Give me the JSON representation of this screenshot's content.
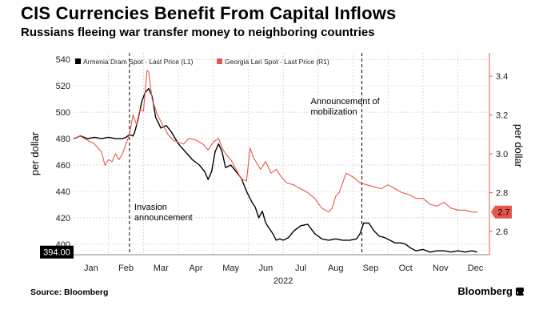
{
  "header": {
    "title": "CIS Currencies Benefit From Capital Inflows",
    "subtitle": "Russians fleeing war transfer money to neighboring countries"
  },
  "footer": {
    "source": "Source: Bloomberg",
    "brand": "Bloomberg"
  },
  "colors": {
    "armenia": "#000000",
    "georgia": "#e8554e",
    "grid": "#cccccc"
  },
  "chart_data": {
    "type": "line",
    "title": "CIS Currencies Benefit From Capital Inflows",
    "subtitle": "Russians fleeing war transfer money to neighboring countries",
    "xlabel": "2022",
    "ylabel_left": "per dollar",
    "ylabel_right": "per dollar",
    "x_ticks": [
      "Jan",
      "Feb",
      "Mar",
      "Apr",
      "May",
      "Jun",
      "Jul",
      "Aug",
      "Sep",
      "Oct",
      "Nov",
      "Dec"
    ],
    "x_range": [
      0,
      11.9
    ],
    "ylim_left": [
      392,
      545
    ],
    "yticks_left": [
      400,
      420,
      440,
      460,
      480,
      500,
      520,
      540
    ],
    "ylim_right": [
      2.48,
      3.52
    ],
    "yticks_right": [
      2.6,
      2.8,
      3.0,
      3.2,
      3.4
    ],
    "legend": [
      "Armenia Dram Spot - Last Price (L1)",
      "Georgia Lari Spot - Last Price (R1)"
    ],
    "legend_position": "top-left",
    "last_value_left": "394.00",
    "last_value_right": "2.7",
    "annotations": [
      {
        "x": 1.6,
        "text_lines": [
          "Invasion",
          "announcement"
        ]
      },
      {
        "x": 8.25,
        "text_lines": [
          "Announcement of",
          "mobilization"
        ]
      }
    ],
    "series": [
      {
        "name": "Armenia Dram Spot - Last Price (L1)",
        "axis": "left",
        "x": [
          0,
          0.2,
          0.4,
          0.6,
          0.8,
          1.0,
          1.2,
          1.4,
          1.5,
          1.6,
          1.7,
          1.75,
          1.85,
          1.95,
          2.05,
          2.15,
          2.25,
          2.35,
          2.5,
          2.65,
          2.8,
          3.0,
          3.2,
          3.4,
          3.6,
          3.75,
          3.85,
          3.95,
          4.05,
          4.15,
          4.25,
          4.35,
          4.5,
          4.65,
          4.8,
          4.95,
          5.1,
          5.2,
          5.3,
          5.4,
          5.5,
          5.6,
          5.7,
          5.8,
          5.9,
          6.0,
          6.15,
          6.3,
          6.5,
          6.7,
          6.9,
          7.1,
          7.3,
          7.5,
          7.7,
          7.9,
          8.1,
          8.2,
          8.3,
          8.45,
          8.6,
          8.75,
          8.9,
          9.05,
          9.2,
          9.35,
          9.5,
          9.65,
          9.8,
          10.0,
          10.2,
          10.4,
          10.6,
          10.8,
          11.0,
          11.2,
          11.4,
          11.55
        ],
        "values": [
          480,
          482,
          480,
          481,
          480,
          481,
          480,
          480,
          481,
          483,
          482,
          485,
          495,
          508,
          515,
          518,
          512,
          496,
          488,
          490,
          485,
          476,
          470,
          464,
          460,
          455,
          449,
          455,
          470,
          476,
          470,
          458,
          460,
          455,
          450,
          440,
          432,
          428,
          420,
          425,
          416,
          412,
          408,
          403,
          404,
          403,
          405,
          410,
          414,
          415,
          408,
          404,
          403,
          404,
          403,
          403,
          404,
          408,
          416,
          416,
          410,
          406,
          405,
          403,
          401,
          401,
          400,
          397,
          395,
          396,
          394,
          395,
          395,
          394,
          395,
          394,
          395,
          394
        ]
      },
      {
        "name": "Georgia Lari Spot - Last Price (R1)",
        "axis": "right",
        "x": [
          0,
          0.2,
          0.4,
          0.6,
          0.8,
          0.9,
          1.0,
          1.1,
          1.2,
          1.3,
          1.4,
          1.5,
          1.6,
          1.7,
          1.8,
          1.9,
          2.0,
          2.1,
          2.15,
          2.25,
          2.4,
          2.55,
          2.7,
          2.85,
          3.0,
          3.15,
          3.3,
          3.5,
          3.7,
          3.85,
          4.0,
          4.15,
          4.25,
          4.35,
          4.5,
          4.65,
          4.8,
          4.95,
          5.05,
          5.15,
          5.25,
          5.35,
          5.5,
          5.65,
          5.8,
          5.95,
          6.1,
          6.3,
          6.5,
          6.7,
          6.9,
          7.1,
          7.3,
          7.4,
          7.5,
          7.6,
          7.8,
          8.0,
          8.2,
          8.4,
          8.6,
          8.8,
          9.0,
          9.2,
          9.4,
          9.6,
          9.8,
          10.0,
          10.2,
          10.4,
          10.6,
          10.8,
          11.0,
          11.2,
          11.4,
          11.55
        ],
        "values": [
          3.08,
          3.09,
          3.07,
          3.05,
          3.01,
          2.94,
          2.97,
          2.96,
          3.0,
          2.97,
          3.0,
          3.05,
          3.1,
          3.2,
          3.15,
          3.23,
          3.22,
          3.43,
          3.42,
          3.28,
          3.2,
          3.15,
          3.1,
          3.07,
          3.06,
          3.05,
          3.08,
          3.07,
          3.05,
          3.02,
          3.06,
          3.08,
          3.03,
          3.0,
          2.97,
          2.92,
          2.87,
          2.86,
          3.03,
          2.98,
          2.95,
          2.92,
          2.96,
          2.9,
          2.92,
          2.88,
          2.85,
          2.84,
          2.82,
          2.8,
          2.77,
          2.72,
          2.7,
          2.72,
          2.78,
          2.8,
          2.9,
          2.88,
          2.85,
          2.84,
          2.83,
          2.82,
          2.84,
          2.82,
          2.8,
          2.79,
          2.77,
          2.77,
          2.74,
          2.73,
          2.75,
          2.72,
          2.71,
          2.71,
          2.7,
          2.7
        ]
      }
    ]
  }
}
